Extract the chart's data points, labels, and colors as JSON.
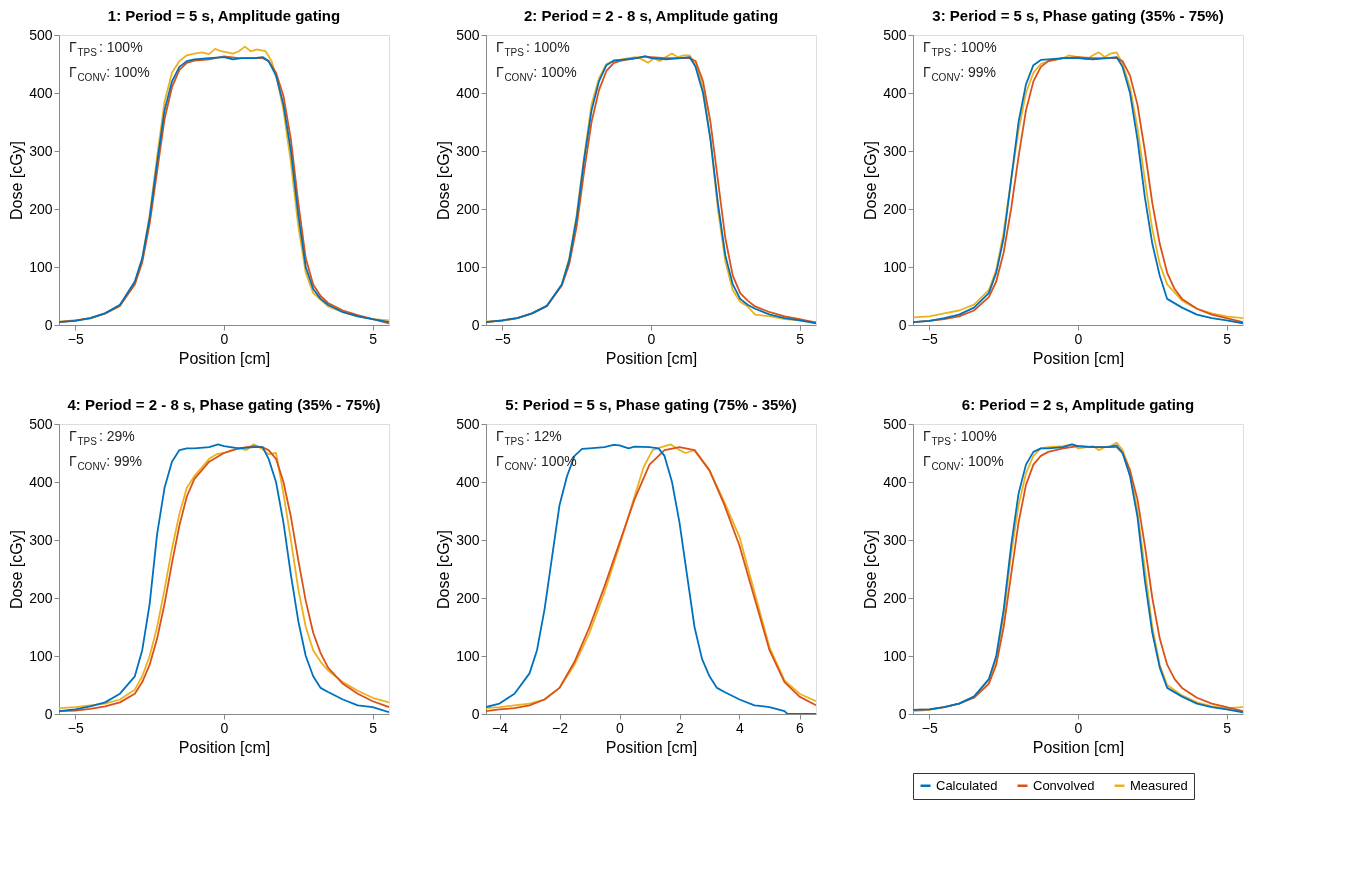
{
  "chart_data": [
    {
      "type": "line",
      "title": "1: Period = 5 s, Amplitude gating",
      "xlabel": "Position [cm]",
      "ylabel": "Dose [cGy]",
      "xlim": [
        -5.55,
        5.55
      ],
      "xticks": [
        -5,
        0,
        5
      ],
      "ylim": [
        0,
        500
      ],
      "yticks": [
        0,
        100,
        200,
        300,
        400,
        500
      ],
      "annotations": [
        "Γ$_{TPS}$: 100%",
        "Γ$_{CONV}$: 100%"
      ],
      "series": [
        {
          "color": "#0072bd",
          "x": [
            -5.55,
            -5,
            -4.5,
            -4,
            -3.5,
            -3,
            -2.75,
            -2.5,
            -2.25,
            -2,
            -1.75,
            -1.5,
            -1.25,
            -1,
            -0.5,
            0,
            0.3,
            0.6,
            1,
            1.3,
            1.5,
            1.75,
            2,
            2.25,
            2.5,
            2.75,
            3,
            3.25,
            3.5,
            4,
            4.5,
            5,
            5.55
          ],
          "values": [
            5,
            7,
            12,
            20,
            35,
            75,
            115,
            185,
            280,
            370,
            420,
            445,
            455,
            458,
            460,
            462,
            458,
            460,
            460,
            462,
            455,
            430,
            380,
            300,
            190,
            100,
            62,
            45,
            35,
            22,
            15,
            10,
            5
          ]
        },
        {
          "color": "#d95319",
          "x": [
            -5.55,
            -5,
            -4.5,
            -4,
            -3.5,
            -3,
            -2.75,
            -2.5,
            -2.25,
            -2,
            -1.75,
            -1.5,
            -1.25,
            -1,
            -0.5,
            0,
            0.5,
            1,
            1.3,
            1.5,
            1.75,
            2,
            2.25,
            2.5,
            2.75,
            3,
            3.25,
            3.5,
            4,
            4.5,
            5,
            5.55
          ],
          "values": [
            5,
            8,
            12,
            20,
            33,
            70,
            108,
            175,
            265,
            355,
            410,
            440,
            452,
            456,
            458,
            463,
            460,
            460,
            460,
            455,
            435,
            395,
            320,
            210,
            115,
            70,
            50,
            38,
            25,
            17,
            10,
            3
          ]
        },
        {
          "color": "#edb120",
          "x": [
            -5.55,
            -5,
            -4.5,
            -4,
            -3.5,
            -3,
            -2.75,
            -2.5,
            -2.25,
            -2,
            -1.75,
            -1.5,
            -1.25,
            -1,
            -0.75,
            -0.5,
            -0.3,
            -0.1,
            0.1,
            0.3,
            0.5,
            0.7,
            0.9,
            1.1,
            1.4,
            1.6,
            1.8,
            2,
            2.25,
            2.5,
            2.75,
            3,
            3.5,
            4,
            4.5,
            5,
            5.55
          ],
          "values": [
            6,
            8,
            11,
            20,
            33,
            72,
            115,
            190,
            290,
            385,
            435,
            455,
            465,
            468,
            470,
            467,
            476,
            472,
            470,
            468,
            472,
            480,
            472,
            475,
            472,
            455,
            420,
            370,
            280,
            170,
            90,
            55,
            32,
            22,
            15,
            10,
            8
          ]
        }
      ]
    },
    {
      "type": "line",
      "title": "2: Period = 2 - 8 s, Amplitude gating",
      "xlabel": "Position [cm]",
      "ylabel": "Dose [cGy]",
      "xlim": [
        -5.55,
        5.55
      ],
      "xticks": [
        -5,
        0,
        5
      ],
      "ylim": [
        0,
        500
      ],
      "yticks": [
        0,
        100,
        200,
        300,
        400,
        500
      ],
      "annotations": [
        "Γ$_{TPS}$: 100%",
        "Γ$_{CONV}$: 100%"
      ],
      "series": [
        {
          "color": "#0072bd",
          "x": [
            -5.55,
            -5,
            -4.5,
            -4,
            -3.5,
            -3,
            -2.75,
            -2.5,
            -2.25,
            -2,
            -1.75,
            -1.5,
            -1.25,
            -1,
            -0.5,
            -0.2,
            0,
            0.5,
            1,
            1.3,
            1.5,
            1.75,
            2,
            2.25,
            2.5,
            2.75,
            3,
            3.25,
            3.5,
            4,
            4.5,
            5,
            5.55
          ],
          "values": [
            5,
            8,
            12,
            20,
            33,
            70,
            112,
            185,
            285,
            370,
            420,
            448,
            456,
            457,
            460,
            463,
            460,
            458,
            460,
            462,
            445,
            400,
            320,
            210,
            120,
            70,
            45,
            35,
            28,
            18,
            12,
            8,
            3
          ]
        },
        {
          "color": "#d95319",
          "x": [
            -5.55,
            -5,
            -4.5,
            -4,
            -3.5,
            -3,
            -2.75,
            -2.5,
            -2.25,
            -2,
            -1.75,
            -1.5,
            -1.25,
            -1,
            -0.5,
            -0.2,
            0,
            0.5,
            1,
            1.3,
            1.5,
            1.75,
            2,
            2.25,
            2.5,
            2.75,
            3,
            3.25,
            3.5,
            4,
            4.5,
            5,
            5.55
          ],
          "values": [
            5,
            8,
            12,
            20,
            33,
            68,
            105,
            170,
            265,
            350,
            405,
            438,
            452,
            456,
            460,
            463,
            462,
            460,
            460,
            460,
            455,
            420,
            350,
            250,
            150,
            85,
            55,
            42,
            32,
            22,
            15,
            10,
            4
          ]
        },
        {
          "color": "#edb120",
          "x": [
            -5.55,
            -5,
            -4.5,
            -4,
            -3.5,
            -3,
            -2.75,
            -2.5,
            -2.25,
            -2,
            -1.75,
            -1.5,
            -1.25,
            -1,
            -0.75,
            -0.5,
            -0.3,
            -0.1,
            0.1,
            0.3,
            0.5,
            0.7,
            0.9,
            1.1,
            1.3,
            1.5,
            1.75,
            2,
            2.25,
            2.5,
            2.75,
            3,
            3.25,
            3.5,
            4,
            4.5,
            5,
            5.55
          ],
          "values": [
            6,
            7,
            12,
            20,
            33,
            70,
            115,
            190,
            290,
            380,
            425,
            450,
            455,
            458,
            460,
            462,
            458,
            452,
            460,
            455,
            462,
            468,
            462,
            465,
            465,
            448,
            410,
            320,
            200,
            110,
            60,
            40,
            32,
            18,
            15,
            10,
            8,
            5
          ]
        }
      ]
    },
    {
      "type": "line",
      "title": "3: Period = 5 s, Phase gating (35% - 75%)",
      "xlabel": "Position [cm]",
      "ylabel": "Dose [cGy]",
      "xlim": [
        -5.55,
        5.55
      ],
      "xticks": [
        -5,
        0,
        5
      ],
      "ylim": [
        0,
        500
      ],
      "yticks": [
        0,
        100,
        200,
        300,
        400,
        500
      ],
      "annotations": [
        "Γ$_{TPS}$: 100%",
        "Γ$_{CONV}$: 99%"
      ],
      "series": [
        {
          "color": "#0072bd",
          "x": [
            -5.55,
            -5,
            -4.5,
            -4,
            -3.5,
            -3,
            -2.75,
            -2.5,
            -2.25,
            -2,
            -1.75,
            -1.5,
            -1.25,
            -1,
            -0.5,
            0,
            0.5,
            1,
            1.3,
            1.5,
            1.75,
            2,
            2.25,
            2.5,
            2.75,
            3,
            3.5,
            4,
            4.5,
            5,
            5.55
          ],
          "values": [
            5,
            7,
            12,
            18,
            30,
            55,
            90,
            150,
            250,
            350,
            415,
            448,
            457,
            458,
            460,
            460,
            458,
            460,
            462,
            445,
            400,
            320,
            220,
            140,
            85,
            45,
            30,
            18,
            12,
            8,
            3
          ]
        },
        {
          "color": "#d95319",
          "x": [
            -5.55,
            -5,
            -4.5,
            -4,
            -3.5,
            -3,
            -2.75,
            -2.5,
            -2.25,
            -2,
            -1.75,
            -1.5,
            -1.25,
            -1,
            -0.5,
            0,
            0.5,
            1,
            1.3,
            1.5,
            1.75,
            2,
            2.25,
            2.5,
            2.75,
            3,
            3.25,
            3.5,
            4,
            4.5,
            5,
            5.55
          ],
          "values": [
            5,
            7,
            10,
            15,
            25,
            48,
            75,
            125,
            200,
            290,
            370,
            420,
            445,
            455,
            460,
            462,
            460,
            460,
            460,
            455,
            430,
            380,
            300,
            210,
            140,
            90,
            62,
            45,
            28,
            18,
            12,
            5
          ]
        },
        {
          "color": "#edb120",
          "x": [
            -5.55,
            -5,
            -4.5,
            -4,
            -3.5,
            -3,
            -2.75,
            -2.5,
            -2.25,
            -2,
            -1.75,
            -1.5,
            -1.25,
            -1,
            -0.5,
            -0.3,
            0,
            0.3,
            0.5,
            0.7,
            0.9,
            1.1,
            1.3,
            1.5,
            1.75,
            2,
            2.25,
            2.5,
            2.75,
            3,
            3.5,
            4,
            4.5,
            5,
            5.55
          ],
          "values": [
            13,
            15,
            20,
            25,
            35,
            60,
            95,
            160,
            250,
            335,
            400,
            435,
            450,
            455,
            460,
            465,
            462,
            458,
            465,
            470,
            462,
            468,
            470,
            450,
            410,
            340,
            250,
            165,
            105,
            70,
            42,
            28,
            20,
            15,
            12
          ]
        }
      ]
    },
    {
      "type": "line",
      "title": "4: Period = 2 - 8 s, Phase gating (35% - 75%)",
      "xlabel": "Position [cm]",
      "ylabel": "Dose [cGy]",
      "xlim": [
        -5.55,
        5.55
      ],
      "xticks": [
        -5,
        0,
        5
      ],
      "ylim": [
        0,
        500
      ],
      "yticks": [
        0,
        100,
        200,
        300,
        400,
        500
      ],
      "annotations": [
        "Γ$_{TPS}$: 29%",
        "Γ$_{CONV}$: 99%"
      ],
      "series": [
        {
          "color": "#0072bd",
          "x": [
            -5.55,
            -5,
            -4.5,
            -4,
            -3.5,
            -3,
            -2.75,
            -2.5,
            -2.25,
            -2,
            -1.75,
            -1.5,
            -1.25,
            -1,
            -0.5,
            -0.2,
            0,
            0.5,
            1,
            1.3,
            1.5,
            1.75,
            2,
            2.25,
            2.5,
            2.75,
            3,
            3.25,
            3.5,
            4,
            4.5,
            5,
            5.55
          ],
          "values": [
            5,
            8,
            13,
            20,
            35,
            65,
            110,
            190,
            310,
            390,
            435,
            455,
            458,
            458,
            460,
            465,
            462,
            458,
            460,
            460,
            440,
            400,
            330,
            240,
            160,
            100,
            65,
            45,
            38,
            25,
            15,
            12,
            3
          ]
        },
        {
          "color": "#d95319",
          "x": [
            -5.55,
            -5,
            -4.5,
            -4,
            -3.5,
            -3,
            -2.75,
            -2.5,
            -2.25,
            -2,
            -1.75,
            -1.5,
            -1.25,
            -1,
            -0.5,
            0,
            0.5,
            1,
            1.3,
            1.5,
            1.75,
            2,
            2.25,
            2.5,
            2.75,
            3,
            3.25,
            3.5,
            4,
            4.5,
            5,
            5.55
          ],
          "values": [
            5,
            6,
            9,
            13,
            20,
            35,
            55,
            85,
            130,
            190,
            260,
            325,
            375,
            405,
            435,
            450,
            458,
            462,
            460,
            455,
            440,
            400,
            340,
            265,
            195,
            140,
            105,
            80,
            52,
            35,
            22,
            12
          ]
        },
        {
          "color": "#edb120",
          "x": [
            -5.55,
            -5,
            -4.5,
            -4,
            -3.5,
            -3,
            -2.75,
            -2.5,
            -2.25,
            -2,
            -1.75,
            -1.5,
            -1.25,
            -1,
            -0.75,
            -0.5,
            -0.25,
            0,
            0.25,
            0.5,
            0.75,
            1,
            1.25,
            1.5,
            1.75,
            2,
            2.25,
            2.5,
            2.75,
            3,
            3.25,
            3.5,
            4,
            4.5,
            5,
            5.55
          ],
          "values": [
            10,
            12,
            15,
            18,
            25,
            42,
            65,
            100,
            150,
            215,
            285,
            345,
            390,
            410,
            425,
            440,
            448,
            450,
            455,
            458,
            455,
            465,
            458,
            448,
            450,
            380,
            300,
            215,
            150,
            110,
            90,
            75,
            55,
            40,
            28,
            20
          ]
        }
      ]
    },
    {
      "type": "line",
      "title": "5: Period = 5 s, Phase gating (75% - 35%)",
      "xlabel": "Position [cm]",
      "ylabel": "Dose [cGy]",
      "xlim": [
        -4.45,
        6.55
      ],
      "xticks": [
        -4,
        -2,
        0,
        2,
        4,
        6
      ],
      "ylim": [
        0,
        500
      ],
      "yticks": [
        0,
        100,
        200,
        300,
        400,
        500
      ],
      "annotations": [
        "Γ$_{TPS}$: 12%",
        "Γ$_{CONV}$: 100%"
      ],
      "series": [
        {
          "color": "#0072bd",
          "x": [
            -4.45,
            -4,
            -3.5,
            -3,
            -2.75,
            -2.5,
            -2.25,
            -2,
            -1.75,
            -1.5,
            -1.25,
            -1,
            -0.5,
            -0.2,
            0,
            0.3,
            0.5,
            1,
            1.3,
            1.5,
            1.75,
            2,
            2.25,
            2.5,
            2.75,
            3,
            3.25,
            3.5,
            4,
            4.5,
            5,
            5.5,
            5.6,
            6.55
          ],
          "values": [
            12,
            18,
            35,
            70,
            110,
            180,
            270,
            360,
            410,
            445,
            457,
            458,
            460,
            464,
            463,
            458,
            461,
            460,
            458,
            445,
            400,
            330,
            240,
            150,
            95,
            65,
            45,
            38,
            25,
            15,
            12,
            5,
            0,
            0
          ]
        },
        {
          "color": "#d95319",
          "x": [
            -4.45,
            -4,
            -3.5,
            -3,
            -2.5,
            -2,
            -1.5,
            -1,
            -0.5,
            0,
            0.5,
            1,
            1.5,
            2,
            2.5,
            3,
            3.5,
            4,
            4.5,
            5,
            5.5,
            6,
            6.55
          ],
          "values": [
            5,
            8,
            10,
            15,
            25,
            45,
            90,
            150,
            220,
            295,
            370,
            430,
            455,
            460,
            455,
            420,
            360,
            290,
            200,
            110,
            55,
            30,
            15
          ]
        },
        {
          "color": "#edb120",
          "x": [
            -4.45,
            -4,
            -3.5,
            -3,
            -2.5,
            -2,
            -1.5,
            -1,
            -0.5,
            0,
            0.5,
            0.8,
            1.1,
            1.4,
            1.7,
            2,
            2.2,
            2.5,
            3,
            3.5,
            4,
            4.5,
            5,
            5.5,
            6,
            6.55
          ],
          "values": [
            10,
            12,
            15,
            18,
            25,
            45,
            85,
            140,
            210,
            290,
            375,
            425,
            455,
            460,
            465,
            455,
            450,
            455,
            420,
            365,
            305,
            210,
            115,
            58,
            35,
            22
          ]
        }
      ]
    },
    {
      "type": "line",
      "title": "6: Period = 2 s, Amplitude gating",
      "xlabel": "Position [cm]",
      "ylabel": "Dose [cGy]",
      "xlim": [
        -5.55,
        5.55
      ],
      "xticks": [
        -5,
        0,
        5
      ],
      "ylim": [
        0,
        500
      ],
      "yticks": [
        0,
        100,
        200,
        300,
        400,
        500
      ],
      "annotations": [
        "Γ$_{TPS}$: 100%",
        "Γ$_{CONV}$: 100%"
      ],
      "legend": "bottom",
      "series": [
        {
          "name": "Calculated",
          "color": "#0072bd",
          "x": [
            -5.55,
            -5,
            -4.5,
            -4,
            -3.5,
            -3,
            -2.75,
            -2.5,
            -2.25,
            -2,
            -1.75,
            -1.5,
            -1.25,
            -1,
            -0.5,
            -0.2,
            0,
            0.5,
            1,
            1.3,
            1.5,
            1.75,
            2,
            2.25,
            2.5,
            2.75,
            3,
            3.5,
            4,
            4.5,
            5,
            5.55
          ],
          "values": [
            7,
            8,
            12,
            18,
            30,
            60,
            100,
            180,
            290,
            380,
            430,
            452,
            458,
            458,
            460,
            465,
            462,
            460,
            460,
            463,
            450,
            410,
            340,
            230,
            140,
            80,
            45,
            30,
            18,
            12,
            8,
            3
          ]
        },
        {
          "name": "Convolved",
          "color": "#d95319",
          "x": [
            -5.55,
            -5,
            -4.5,
            -4,
            -3.5,
            -3,
            -2.75,
            -2.5,
            -2.25,
            -2,
            -1.75,
            -1.5,
            -1.25,
            -1,
            -0.5,
            0,
            0.5,
            1,
            1.3,
            1.5,
            1.75,
            2,
            2.25,
            2.5,
            2.75,
            3,
            3.25,
            3.5,
            4,
            4.5,
            5,
            5.55
          ],
          "values": [
            7,
            8,
            12,
            18,
            28,
            52,
            85,
            150,
            240,
            330,
            395,
            430,
            445,
            452,
            458,
            462,
            460,
            460,
            460,
            450,
            420,
            370,
            290,
            200,
            130,
            85,
            60,
            45,
            28,
            18,
            12,
            5
          ]
        },
        {
          "name": "Measured",
          "color": "#edb120",
          "x": [
            -5.55,
            -5,
            -4.5,
            -4,
            -3.5,
            -3,
            -2.75,
            -2.5,
            -2.25,
            -2,
            -1.75,
            -1.5,
            -1.25,
            -1,
            -0.5,
            -0.2,
            0,
            0.3,
            0.5,
            0.7,
            0.9,
            1.1,
            1.3,
            1.5,
            1.75,
            2,
            2.25,
            2.5,
            2.75,
            3,
            3.5,
            4,
            4.5,
            5,
            5.55
          ],
          "values": [
            5,
            7,
            12,
            18,
            30,
            58,
            95,
            170,
            275,
            360,
            415,
            445,
            458,
            460,
            462,
            465,
            458,
            460,
            462,
            455,
            460,
            462,
            468,
            455,
            420,
            350,
            250,
            150,
            85,
            50,
            32,
            20,
            13,
            10,
            12
          ]
        }
      ]
    }
  ]
}
